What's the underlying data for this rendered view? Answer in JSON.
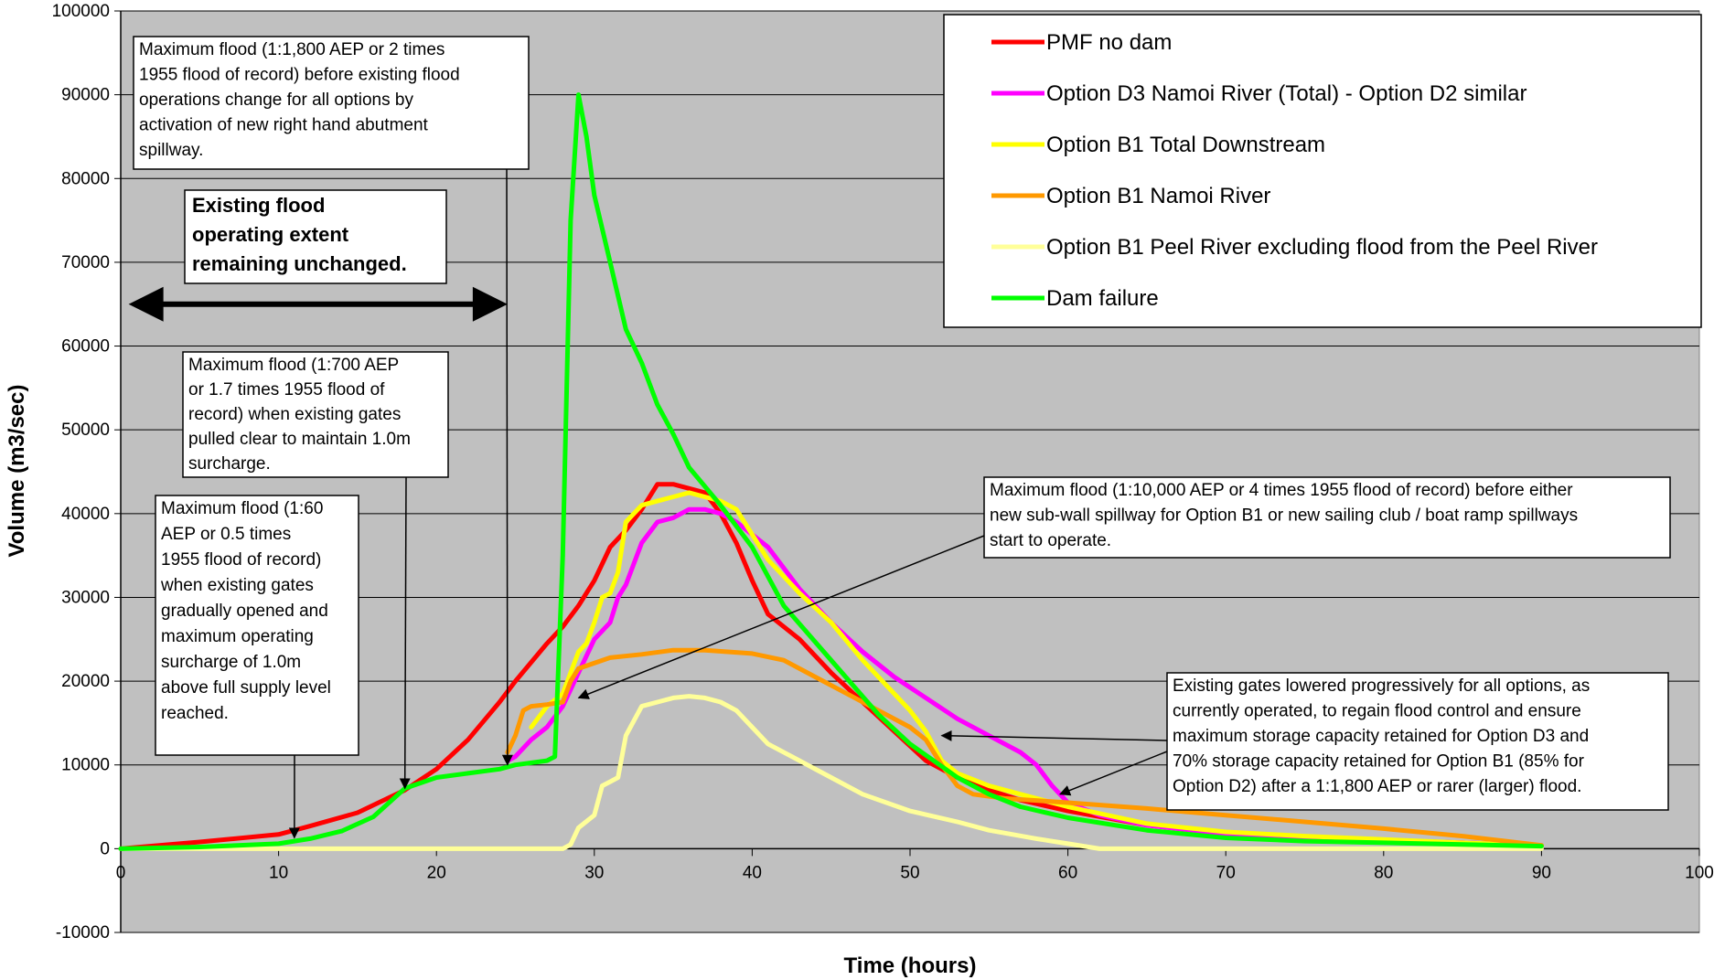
{
  "chart_data": {
    "type": "line",
    "title": "",
    "xlabel": "Time (hours)",
    "ylabel": "Volume (m3/sec)",
    "xlim": [
      0,
      100
    ],
    "ylim": [
      -10000,
      100000
    ],
    "x_ticks": [
      "0",
      "10",
      "20",
      "30",
      "40",
      "50",
      "60",
      "70",
      "80",
      "90",
      "100"
    ],
    "y_ticks": [
      "-10000",
      "0",
      "10000",
      "20000",
      "30000",
      "40000",
      "50000",
      "60000",
      "70000",
      "80000",
      "90000",
      "100000"
    ],
    "grid": "horizontal",
    "legend_position": "top-right",
    "plot_background": "#c0c0c0",
    "series": [
      {
        "name": "PMF no dam",
        "color": "#ff0000",
        "points": [
          [
            0,
            0
          ],
          [
            5,
            800
          ],
          [
            10,
            1700
          ],
          [
            12,
            2700
          ],
          [
            15,
            4300
          ],
          [
            18,
            7000
          ],
          [
            20,
            9500
          ],
          [
            22,
            13000
          ],
          [
            24,
            17500
          ],
          [
            25,
            20000
          ],
          [
            27,
            24500
          ],
          [
            28,
            26500
          ],
          [
            29,
            29000
          ],
          [
            30,
            32000
          ],
          [
            31,
            36000
          ],
          [
            32,
            38000
          ],
          [
            33,
            40500
          ],
          [
            34,
            43500
          ],
          [
            35,
            43500
          ],
          [
            36,
            43000
          ],
          [
            37,
            42500
          ],
          [
            38,
            40000
          ],
          [
            39,
            36500
          ],
          [
            40,
            32000
          ],
          [
            41,
            28000
          ],
          [
            43,
            25000
          ],
          [
            45,
            21000
          ],
          [
            47,
            17500
          ],
          [
            49,
            14000
          ],
          [
            51,
            10500
          ],
          [
            53,
            8500
          ],
          [
            55,
            7000
          ],
          [
            57,
            5800
          ],
          [
            60,
            4500
          ],
          [
            65,
            2800
          ],
          [
            70,
            1800
          ],
          [
            75,
            1300
          ],
          [
            80,
            1000
          ],
          [
            85,
            700
          ],
          [
            90,
            400
          ]
        ]
      },
      {
        "name": "Option D3 Namoi River (Total) - Option D2 similar",
        "color": "#ff00ff",
        "points": [
          [
            24.5,
            10500
          ],
          [
            25,
            11000
          ],
          [
            26,
            13000
          ],
          [
            27,
            14500
          ],
          [
            28,
            17000
          ],
          [
            28.5,
            19000
          ],
          [
            29,
            21000
          ],
          [
            30,
            25000
          ],
          [
            31,
            27000
          ],
          [
            31.5,
            30000
          ],
          [
            32,
            31500
          ],
          [
            33,
            36500
          ],
          [
            34,
            39000
          ],
          [
            35,
            39500
          ],
          [
            36,
            40500
          ],
          [
            37,
            40500
          ],
          [
            38,
            40000
          ],
          [
            39,
            39000
          ],
          [
            40,
            37500
          ],
          [
            41,
            36000
          ],
          [
            43,
            31000
          ],
          [
            45,
            27000
          ],
          [
            47,
            23500
          ],
          [
            49,
            20500
          ],
          [
            51,
            18000
          ],
          [
            53,
            15500
          ],
          [
            55,
            13500
          ],
          [
            57,
            11500
          ],
          [
            58,
            10000
          ],
          [
            59,
            7500
          ],
          [
            60,
            5500
          ],
          [
            62,
            4000
          ],
          [
            65,
            2800
          ],
          [
            70,
            1800
          ],
          [
            75,
            1300
          ],
          [
            80,
            1000
          ],
          [
            85,
            700
          ],
          [
            90,
            400
          ]
        ]
      },
      {
        "name": "Option B1 Total Downstream",
        "color": "#ffff00",
        "points": [
          [
            26,
            14500
          ],
          [
            27,
            17000
          ],
          [
            28,
            18500
          ],
          [
            28.5,
            21000
          ],
          [
            29,
            23500
          ],
          [
            29.5,
            24500
          ],
          [
            30,
            27000
          ],
          [
            30.5,
            30000
          ],
          [
            31,
            30500
          ],
          [
            31.5,
            33000
          ],
          [
            32,
            39000
          ],
          [
            33,
            41000
          ],
          [
            34,
            41500
          ],
          [
            35,
            42000
          ],
          [
            36,
            42500
          ],
          [
            37,
            42000
          ],
          [
            38,
            41500
          ],
          [
            39,
            40500
          ],
          [
            40,
            37500
          ],
          [
            41,
            34500
          ],
          [
            43,
            30500
          ],
          [
            45,
            27000
          ],
          [
            47,
            22500
          ],
          [
            49,
            18500
          ],
          [
            50,
            16500
          ],
          [
            51,
            14000
          ],
          [
            52,
            10500
          ],
          [
            53,
            9000
          ],
          [
            55,
            7500
          ],
          [
            57,
            6500
          ],
          [
            60,
            5000
          ],
          [
            65,
            3000
          ],
          [
            70,
            2000
          ],
          [
            75,
            1500
          ],
          [
            80,
            1100
          ],
          [
            85,
            700
          ],
          [
            90,
            400
          ]
        ]
      },
      {
        "name": "Option B1 Namoi River",
        "color": "#ff9900",
        "points": [
          [
            24.5,
            11500
          ],
          [
            25,
            13500
          ],
          [
            25.5,
            16500
          ],
          [
            26,
            17000
          ],
          [
            27,
            17200
          ],
          [
            28,
            17500
          ],
          [
            28.5,
            20000
          ],
          [
            29,
            21500
          ],
          [
            31,
            22800
          ],
          [
            33,
            23200
          ],
          [
            35,
            23700
          ],
          [
            37,
            23700
          ],
          [
            40,
            23300
          ],
          [
            42,
            22500
          ],
          [
            44,
            20500
          ],
          [
            46,
            18500
          ],
          [
            48,
            16500
          ],
          [
            50,
            14500
          ],
          [
            51,
            13000
          ],
          [
            52,
            10000
          ],
          [
            53,
            7500
          ],
          [
            54,
            6500
          ],
          [
            56,
            6000
          ],
          [
            60,
            5500
          ],
          [
            65,
            4800
          ],
          [
            70,
            4000
          ],
          [
            75,
            3200
          ],
          [
            80,
            2400
          ],
          [
            85,
            1500
          ],
          [
            90,
            400
          ]
        ]
      },
      {
        "name": "Option B1 Peel River excluding flood from the Peel River",
        "color": "#ffff99",
        "points": [
          [
            0,
            0
          ],
          [
            28,
            0
          ],
          [
            28.5,
            500
          ],
          [
            29,
            2500
          ],
          [
            30,
            4000
          ],
          [
            30.5,
            7500
          ],
          [
            31,
            8000
          ],
          [
            31.5,
            8500
          ],
          [
            32,
            13500
          ],
          [
            33,
            17000
          ],
          [
            34,
            17500
          ],
          [
            35,
            18000
          ],
          [
            36,
            18200
          ],
          [
            37,
            18000
          ],
          [
            38,
            17500
          ],
          [
            39,
            16500
          ],
          [
            40,
            14500
          ],
          [
            41,
            12500
          ],
          [
            43,
            10500
          ],
          [
            45,
            8500
          ],
          [
            47,
            6500
          ],
          [
            50,
            4500
          ],
          [
            53,
            3200
          ],
          [
            55,
            2200
          ],
          [
            58,
            1200
          ],
          [
            60,
            600
          ],
          [
            62,
            0
          ],
          [
            70,
            0
          ],
          [
            80,
            0
          ],
          [
            90,
            0
          ]
        ]
      },
      {
        "name": "Dam failure",
        "color": "#00ff00",
        "points": [
          [
            0,
            0
          ],
          [
            5,
            200
          ],
          [
            10,
            600
          ],
          [
            12,
            1200
          ],
          [
            14,
            2100
          ],
          [
            16,
            3800
          ],
          [
            17,
            5500
          ],
          [
            18,
            7200
          ],
          [
            20,
            8500
          ],
          [
            22,
            9000
          ],
          [
            24,
            9500
          ],
          [
            25,
            10000
          ],
          [
            27,
            10500
          ],
          [
            27.5,
            11000
          ],
          [
            28,
            35000
          ],
          [
            28.5,
            75000
          ],
          [
            29,
            90000
          ],
          [
            29.5,
            85000
          ],
          [
            30,
            78000
          ],
          [
            31,
            70000
          ],
          [
            32,
            62000
          ],
          [
            33,
            58000
          ],
          [
            34,
            53000
          ],
          [
            35,
            49500
          ],
          [
            36,
            45500
          ],
          [
            38,
            41000
          ],
          [
            40,
            36000
          ],
          [
            42,
            29000
          ],
          [
            45,
            22500
          ],
          [
            48,
            16000
          ],
          [
            50,
            12500
          ],
          [
            53,
            8500
          ],
          [
            55,
            6500
          ],
          [
            57,
            5000
          ],
          [
            60,
            3700
          ],
          [
            65,
            2200
          ],
          [
            70,
            1300
          ],
          [
            75,
            900
          ],
          [
            80,
            700
          ],
          [
            85,
            500
          ],
          [
            90,
            300
          ]
        ]
      }
    ],
    "annotations": [
      {
        "lines": [
          "Maximum flood (1:1,800 AEP or 2 times",
          "1955 flood of record) before existing flood",
          "operations change for all options by",
          "activation of new right hand abutment",
          "spillway."
        ],
        "points_to": [
          24.5,
          10000
        ]
      },
      {
        "lines": [
          "Existing flood",
          "operating extent",
          "remaining unchanged."
        ],
        "bold": true,
        "arrow_range": [
          0.5,
          24.5
        ],
        "arrow_y": 65000
      },
      {
        "lines": [
          "Maximum flood (1:700 AEP",
          "or 1.7 times 1955 flood of",
          "record) when existing gates",
          "pulled clear to maintain 1.0m",
          "surcharge."
        ],
        "points_to": [
          18,
          7200
        ]
      },
      {
        "lines": [
          "Maximum flood (1:60",
          "AEP or 0.5 times",
          "1955 flood of record)",
          "when existing gates",
          "gradually opened and",
          "maximum operating",
          "surcharge of 1.0m",
          "above full supply level",
          "reached."
        ],
        "points_to": [
          11,
          1300
        ]
      },
      {
        "lines": [
          "Maximum flood (1:10,000 AEP or 4 times 1955 flood of record) before either",
          "new sub-wall spillway for Option B1 or new sailing club / boat ramp spillways",
          "start to operate."
        ],
        "points_to": [
          29,
          18000
        ]
      },
      {
        "lines": [
          "Existing gates lowered progressively for all options, as",
          "currently operated, to regain flood control and ensure",
          "maximum storage capacity retained for Option D3 and",
          "70% storage capacity retained for Option B1 (85% for",
          "Option D2) after a 1:1,800 AEP or rarer (larger) flood."
        ],
        "points_to": [
          [
            52,
            13500
          ],
          [
            59.5,
            6500
          ]
        ]
      }
    ]
  }
}
